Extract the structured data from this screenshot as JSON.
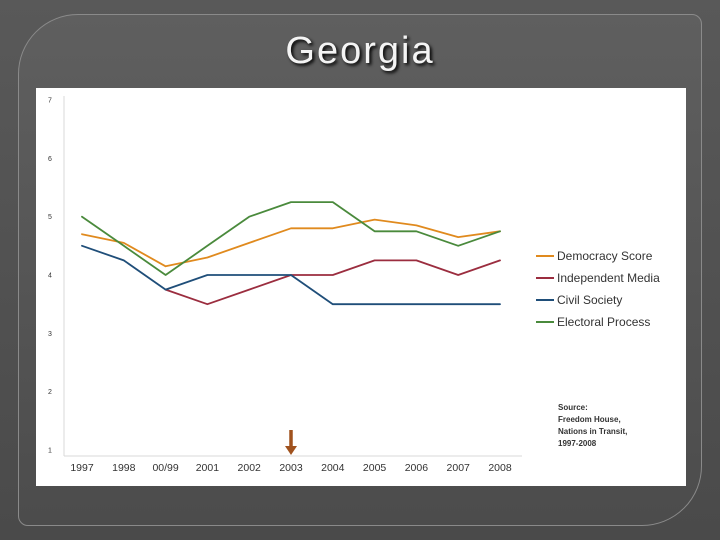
{
  "slide": {
    "title": "Georgia"
  },
  "chart_data": {
    "type": "line",
    "categories": [
      "1997",
      "1998",
      "00/99",
      "2001",
      "2002",
      "2003",
      "2004",
      "2005",
      "2006",
      "2007",
      "2008"
    ],
    "ylim": [
      1,
      7
    ],
    "yticks": [
      "1",
      "2",
      "3",
      "4",
      "5",
      "6",
      "7"
    ],
    "series": [
      {
        "name": "Democracy Score",
        "color": "#e08a1e",
        "values": [
          4.7,
          4.55,
          4.15,
          4.3,
          4.55,
          4.8,
          4.8,
          4.95,
          4.85,
          4.65,
          4.75
        ]
      },
      {
        "name": "Independent Media",
        "color": "#9b2d3f",
        "values": [
          null,
          null,
          3.75,
          3.5,
          3.75,
          4.0,
          4.0,
          4.25,
          4.25,
          4.0,
          4.25
        ]
      },
      {
        "name": "Civil Society",
        "color": "#1f4e79",
        "values": [
          4.5,
          4.25,
          3.75,
          4.0,
          4.0,
          4.0,
          3.5,
          3.5,
          3.5,
          3.5,
          3.5
        ]
      },
      {
        "name": "Electoral Process",
        "color": "#4a8a3c",
        "values": [
          5.0,
          4.5,
          4.0,
          4.5,
          5.0,
          5.25,
          5.25,
          4.75,
          4.75,
          4.5,
          4.75
        ]
      }
    ],
    "legend_position": "right",
    "source": [
      "Source:",
      "Freedom House,",
      "Nations in Transit,",
      "1997-2008"
    ],
    "highlight_category": "2003",
    "highlight_color": "#a0521e",
    "grid": false
  }
}
